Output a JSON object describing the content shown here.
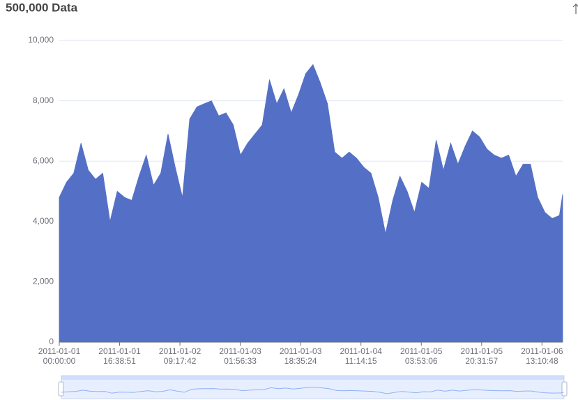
{
  "chart_data": {
    "type": "area",
    "title": "500,000 Data",
    "x": [
      "2011-01-01 00:00:00",
      "2011-01-01 02:00:00",
      "2011-01-01 04:00:00",
      "2011-01-01 06:00:00",
      "2011-01-01 08:00:00",
      "2011-01-01 10:00:00",
      "2011-01-01 12:00:00",
      "2011-01-01 14:00:00",
      "2011-01-01 16:00:00",
      "2011-01-01 18:00:00",
      "2011-01-01 20:00:00",
      "2011-01-01 22:00:00",
      "2011-01-02 00:00:00",
      "2011-01-02 02:00:00",
      "2011-01-02 04:00:00",
      "2011-01-02 06:00:00",
      "2011-01-02 08:00:00",
      "2011-01-02 10:00:00",
      "2011-01-02 12:00:00",
      "2011-01-02 14:00:00",
      "2011-01-02 16:00:00",
      "2011-01-02 18:00:00",
      "2011-01-02 20:00:00",
      "2011-01-02 22:00:00",
      "2011-01-03 00:00:00",
      "2011-01-03 02:00:00",
      "2011-01-03 04:00:00",
      "2011-01-03 06:00:00",
      "2011-01-03 08:00:00",
      "2011-01-03 10:00:00",
      "2011-01-03 12:00:00",
      "2011-01-03 14:00:00",
      "2011-01-03 16:00:00",
      "2011-01-03 18:00:00",
      "2011-01-03 20:00:00",
      "2011-01-03 22:00:00",
      "2011-01-04 00:00:00",
      "2011-01-04 02:00:00",
      "2011-01-04 04:00:00",
      "2011-01-04 06:00:00",
      "2011-01-04 08:00:00",
      "2011-01-04 10:00:00",
      "2011-01-04 12:00:00",
      "2011-01-04 14:00:00",
      "2011-01-04 16:00:00",
      "2011-01-04 18:00:00",
      "2011-01-04 20:00:00",
      "2011-01-04 22:00:00",
      "2011-01-05 00:00:00",
      "2011-01-05 02:00:00",
      "2011-01-05 04:00:00",
      "2011-01-05 06:00:00",
      "2011-01-05 08:00:00",
      "2011-01-05 10:00:00",
      "2011-01-05 12:00:00",
      "2011-01-05 14:00:00",
      "2011-01-05 16:00:00",
      "2011-01-05 18:00:00",
      "2011-01-05 20:00:00",
      "2011-01-05 22:00:00",
      "2011-01-06 00:00:00",
      "2011-01-06 02:00:00",
      "2011-01-06 04:00:00",
      "2011-01-06 06:00:00",
      "2011-01-06 08:00:00",
      "2011-01-06 10:00:00",
      "2011-01-06 12:00:00",
      "2011-01-06 14:00:00",
      "2011-01-06 16:00:00",
      "2011-01-06 18:00:00",
      "2011-01-06 18:53:20"
    ],
    "values": [
      4800,
      5300,
      5600,
      6600,
      5700,
      5400,
      5600,
      4000,
      5000,
      4800,
      4700,
      5500,
      6200,
      5200,
      5600,
      6900,
      5800,
      4800,
      7400,
      7800,
      7900,
      8000,
      7500,
      7600,
      7200,
      6200,
      6600,
      6900,
      7200,
      8700,
      7900,
      8400,
      7600,
      8200,
      8900,
      9200,
      8600,
      7900,
      6300,
      6100,
      6300,
      6100,
      5800,
      5600,
      4800,
      3600,
      4700,
      5500,
      5000,
      4300,
      5300,
      5100,
      6700,
      5700,
      6600,
      5900,
      6500,
      7000,
      6800,
      6400,
      6200,
      6100,
      6200,
      5500,
      5900,
      5900,
      4800,
      4300,
      4100,
      4200,
      4900
    ],
    "color": "#5470c6",
    "xlim": [
      "2011-01-01 00:00:00",
      "2011-01-06 18:53:20"
    ],
    "xticks": [
      "2011-01-01 00:00:00",
      "2011-01-01 16:38:51",
      "2011-01-02 09:17:42",
      "2011-01-03 01:56:33",
      "2011-01-03 18:35:24",
      "2011-01-04 11:14:15",
      "2011-01-05 03:53:06",
      "2011-01-05 20:31:57",
      "2011-01-06 13:10:48"
    ],
    "ylim": [
      0,
      10000
    ],
    "yticks": [
      0,
      {
        "value": 2000,
        "label": "2,000"
      },
      {
        "value": 4000,
        "label": "4,000"
      },
      {
        "value": 6000,
        "label": "6,000"
      },
      {
        "value": 8000,
        "label": "8,000"
      },
      {
        "value": 10000,
        "label": "10,000"
      }
    ],
    "grid": true
  }
}
